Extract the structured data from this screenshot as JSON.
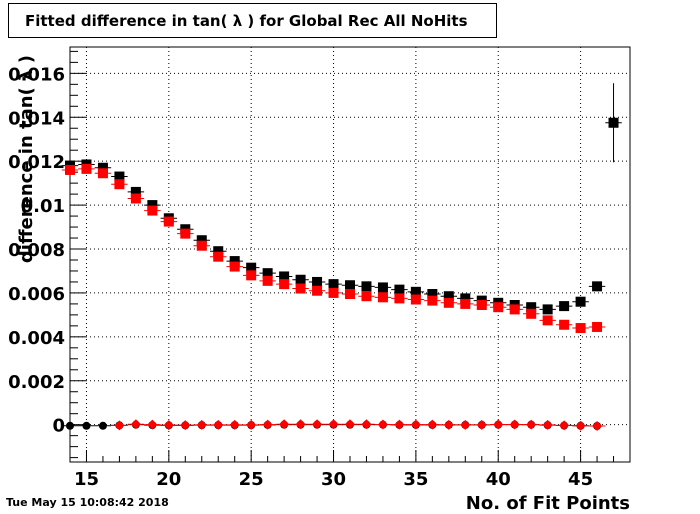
{
  "title": "Fitted difference in tan( λ ) for Global Rec All NoHits",
  "timestamp": "Tue May 15 10:08:42 2018",
  "chart_data": {
    "type": "scatter",
    "title": "Fitted difference in tan( λ ) for Global Rec All NoHits",
    "xlabel": "No. of Fit Points",
    "ylabel": "difference in tan( λ )",
    "xlim": [
      14,
      48
    ],
    "ylim": [
      -0.0017,
      0.0172
    ],
    "grid": true,
    "x_ticks": [
      "15",
      "20",
      "25",
      "30",
      "35",
      "40",
      "45"
    ],
    "y_ticks": [
      "0",
      "0.002",
      "0.004",
      "0.006",
      "0.008",
      "0.01",
      "0.012",
      "0.014",
      "0.016"
    ],
    "x_tick_values": [
      15,
      20,
      25,
      30,
      35,
      40,
      45
    ],
    "y_tick_values": [
      0,
      0.002,
      0.004,
      0.006,
      0.008,
      0.01,
      0.012,
      0.014,
      0.016
    ],
    "series": [
      {
        "marker": "square",
        "color": "#000000",
        "points": [
          [
            14,
            0.0118
          ],
          [
            15,
            0.01185
          ],
          [
            16,
            0.0117
          ],
          [
            17,
            0.0113
          ],
          [
            18,
            0.0106
          ],
          [
            19,
            0.01
          ],
          [
            20,
            0.0094
          ],
          [
            21,
            0.0089
          ],
          [
            22,
            0.0084
          ],
          [
            23,
            0.0079
          ],
          [
            24,
            0.00745
          ],
          [
            25,
            0.00715
          ],
          [
            26,
            0.0069
          ],
          [
            27,
            0.00675
          ],
          [
            28,
            0.0066
          ],
          [
            29,
            0.0065
          ],
          [
            30,
            0.0064
          ],
          [
            31,
            0.00635
          ],
          [
            32,
            0.0063
          ],
          [
            33,
            0.00625
          ],
          [
            34,
            0.00615
          ],
          [
            35,
            0.00605
          ],
          [
            36,
            0.00595
          ],
          [
            37,
            0.00585
          ],
          [
            38,
            0.00575
          ],
          [
            39,
            0.00565
          ],
          [
            40,
            0.00555
          ],
          [
            41,
            0.00545
          ],
          [
            42,
            0.00535
          ],
          [
            43,
            0.00525
          ],
          [
            44,
            0.0054
          ],
          [
            45,
            0.0056
          ],
          [
            46,
            0.0063
          ],
          [
            47,
            0.01375
          ]
        ],
        "errors": {
          "47": 0.0018
        }
      },
      {
        "marker": "square",
        "color": "#ff0000",
        "points": [
          [
            14,
            0.0116
          ],
          [
            15,
            0.01165
          ],
          [
            16,
            0.01145
          ],
          [
            17,
            0.01095
          ],
          [
            18,
            0.0103
          ],
          [
            19,
            0.00975
          ],
          [
            20,
            0.00925
          ],
          [
            21,
            0.0087
          ],
          [
            22,
            0.00815
          ],
          [
            23,
            0.00765
          ],
          [
            24,
            0.0072
          ],
          [
            25,
            0.0068
          ],
          [
            26,
            0.00655
          ],
          [
            27,
            0.0064
          ],
          [
            28,
            0.0062
          ],
          [
            29,
            0.0061
          ],
          [
            30,
            0.006
          ],
          [
            31,
            0.00595
          ],
          [
            32,
            0.00585
          ],
          [
            33,
            0.0058
          ],
          [
            34,
            0.00575
          ],
          [
            35,
            0.0057
          ],
          [
            36,
            0.00565
          ],
          [
            37,
            0.00555
          ],
          [
            38,
            0.0055
          ],
          [
            39,
            0.00545
          ],
          [
            40,
            0.00535
          ],
          [
            41,
            0.00525
          ],
          [
            42,
            0.00505
          ],
          [
            43,
            0.00475
          ],
          [
            44,
            0.00455
          ],
          [
            45,
            0.0044
          ],
          [
            46,
            0.00445
          ]
        ]
      },
      {
        "marker": "circle",
        "color": "#000000",
        "points": [
          [
            14,
            -5e-05
          ],
          [
            15,
            -5e-05
          ],
          [
            16,
            -5e-05
          ],
          [
            17,
            -3e-05
          ],
          [
            18,
            0.0
          ],
          [
            19,
            -2e-05
          ],
          [
            20,
            -3e-05
          ],
          [
            21,
            -3e-05
          ],
          [
            22,
            -2e-05
          ],
          [
            23,
            -2e-05
          ],
          [
            24,
            -2e-05
          ],
          [
            25,
            -2e-05
          ],
          [
            26,
            -1e-05
          ],
          [
            27,
            0.0
          ],
          [
            28,
            0.0
          ],
          [
            29,
            0.0
          ],
          [
            30,
            0.0
          ],
          [
            31,
            0.0
          ],
          [
            32,
            0.0
          ],
          [
            33,
            0.0
          ],
          [
            34,
            -1e-05
          ],
          [
            35,
            -1e-05
          ],
          [
            36,
            -1e-05
          ],
          [
            37,
            -1e-05
          ],
          [
            38,
            -1e-05
          ],
          [
            39,
            -1e-05
          ],
          [
            40,
            0.0
          ],
          [
            41,
            0.0
          ],
          [
            42,
            0.0
          ],
          [
            43,
            -2e-05
          ],
          [
            44,
            -4e-05
          ],
          [
            45,
            -5e-05
          ],
          [
            46,
            -6e-05
          ]
        ]
      },
      {
        "marker": "diamond",
        "color": "#ff0000",
        "points": [
          [
            17,
            -3e-05
          ],
          [
            18,
            2e-05
          ],
          [
            19,
            0.0
          ],
          [
            20,
            -2e-05
          ],
          [
            21,
            -2e-05
          ],
          [
            22,
            -1e-05
          ],
          [
            23,
            -1e-05
          ],
          [
            24,
            -1e-05
          ],
          [
            25,
            -1e-05
          ],
          [
            26,
            0.0
          ],
          [
            27,
            2e-05
          ],
          [
            28,
            2e-05
          ],
          [
            29,
            2e-05
          ],
          [
            30,
            2e-05
          ],
          [
            31,
            2e-05
          ],
          [
            32,
            2e-05
          ],
          [
            33,
            1e-05
          ],
          [
            34,
            0.0
          ],
          [
            35,
            0.0
          ],
          [
            36,
            0.0
          ],
          [
            37,
            -1e-05
          ],
          [
            38,
            -1e-05
          ],
          [
            39,
            -1e-05
          ],
          [
            40,
            1e-05
          ],
          [
            41,
            1e-05
          ],
          [
            42,
            0.0
          ],
          [
            43,
            -1e-05
          ],
          [
            44,
            -3e-05
          ],
          [
            45,
            -5e-05
          ],
          [
            46,
            -6e-05
          ]
        ]
      }
    ]
  }
}
